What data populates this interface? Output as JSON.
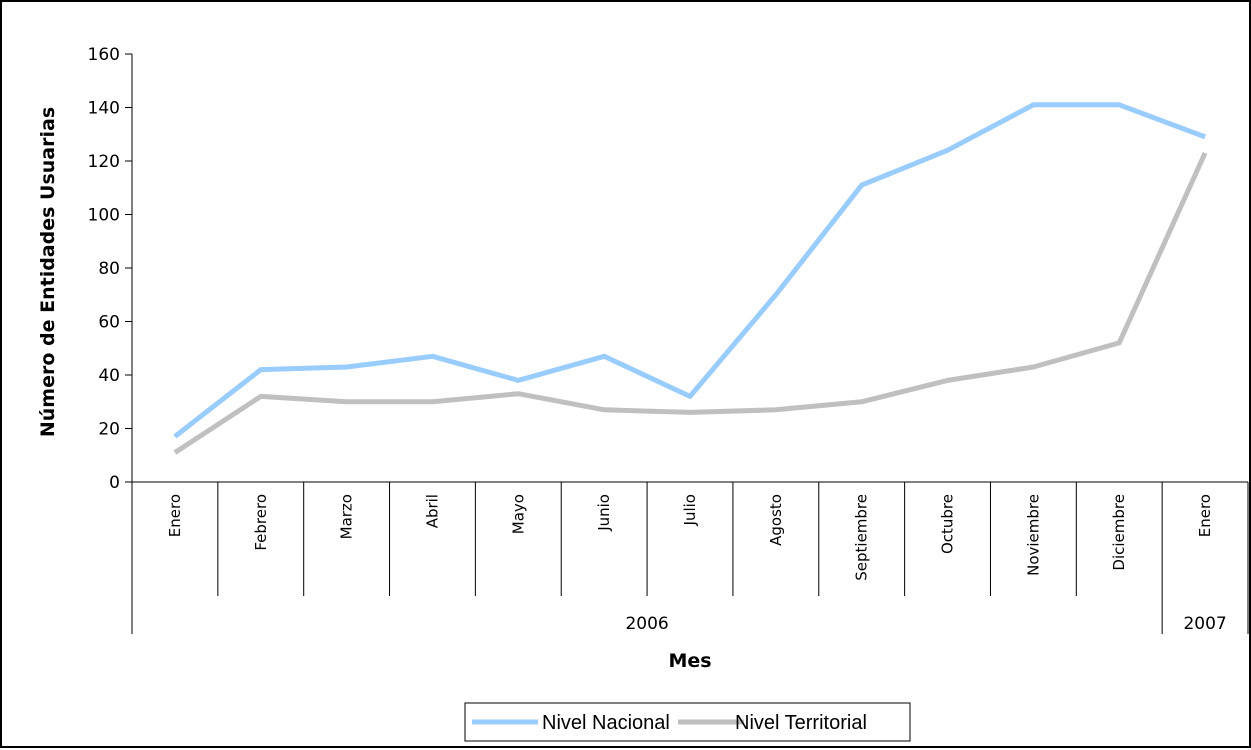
{
  "chart_data": {
    "type": "line",
    "title": "",
    "xlabel": "Mes",
    "ylabel": "Número de  Entidades Usuarias",
    "ylim": [
      0,
      160
    ],
    "yticks": [
      0,
      20,
      40,
      60,
      80,
      100,
      120,
      140,
      160
    ],
    "categories": [
      "Enero",
      "Febrero",
      "Marzo",
      "Abril",
      "Mayo",
      "Junio",
      "Julio",
      "Agosto",
      "Septiembre",
      "Octubre",
      "Noviembre",
      "Diciembre",
      "Enero"
    ],
    "year_groups": [
      {
        "label": "2006",
        "start": 0,
        "end": 11
      },
      {
        "label": "2007",
        "start": 12,
        "end": 12
      }
    ],
    "series": [
      {
        "name": "Nivel Nacional",
        "color": "#99CCFF",
        "values": [
          17,
          42,
          43,
          47,
          38,
          47,
          32,
          70,
          111,
          124,
          141,
          141,
          129
        ]
      },
      {
        "name": "Nivel Territorial",
        "color": "#C0C0C0",
        "values": [
          11,
          32,
          30,
          30,
          33,
          27,
          26,
          27,
          30,
          38,
          43,
          52,
          123
        ]
      }
    ],
    "grid": false,
    "legend_position": "bottom"
  }
}
